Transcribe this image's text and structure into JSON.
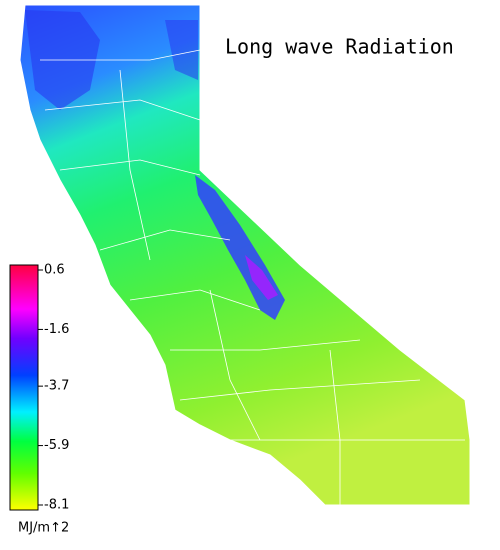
{
  "title": "Long wave Radiation",
  "colorbar": {
    "lim": [
      -8.1,
      0.6
    ],
    "ticks": [
      0.6,
      -1.6,
      -3.7,
      -5.9,
      -8.1
    ],
    "label": "MJ/m↑2"
  }
}
